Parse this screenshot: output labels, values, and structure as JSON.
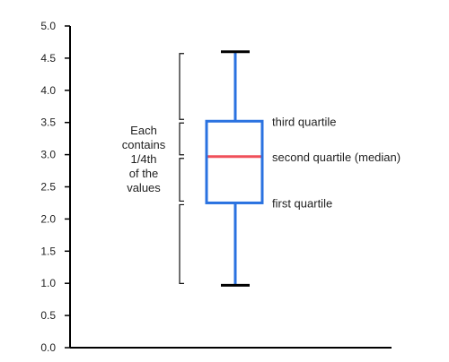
{
  "chart_data": {
    "type": "box",
    "title": "",
    "xlabel": "",
    "ylabel": "",
    "ylim": [
      0,
      5
    ],
    "yticks": [
      "0.0",
      "0.5",
      "1.0",
      "1.5",
      "2.0",
      "2.5",
      "3.0",
      "3.5",
      "4.0",
      "4.5",
      "5.0"
    ],
    "box": {
      "min": 0.97,
      "q1": 2.25,
      "median": 2.97,
      "q3": 3.52,
      "max": 4.6
    },
    "annotations": {
      "q3": "third quartile",
      "median": "second quartile (median)",
      "q1": "first quartile"
    },
    "note_lines": [
      "Each",
      "contains",
      "1/4th",
      "of the",
      "values"
    ],
    "colors": {
      "box": "#2a72e0",
      "median": "#f0505a",
      "axis": "#000000",
      "whisker_cap": "#000000"
    }
  }
}
